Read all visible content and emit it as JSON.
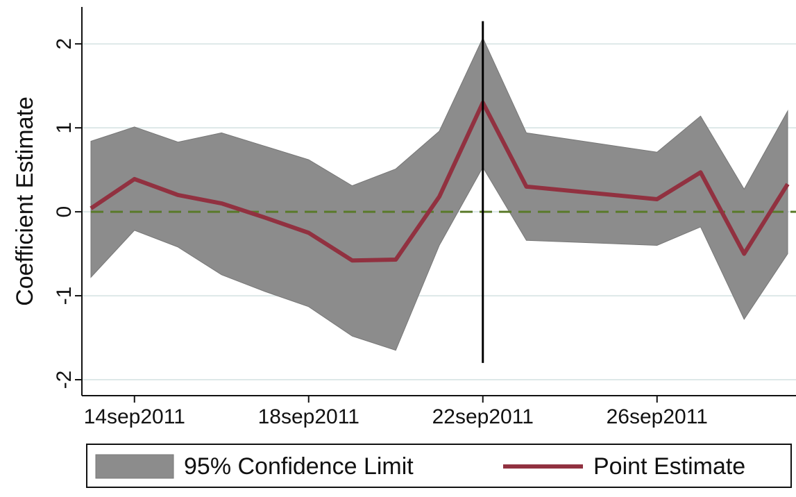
{
  "chart_data": {
    "type": "line",
    "ylabel": "Coefficient Estimate",
    "x": [
      "2011-09-13",
      "2011-09-14",
      "2011-09-15",
      "2011-09-16",
      "2011-09-17",
      "2011-09-18",
      "2011-09-19",
      "2011-09-20",
      "2011-09-21",
      "2011-09-22",
      "2011-09-23",
      "2011-09-26",
      "2011-09-27",
      "2011-09-28",
      "2011-09-29"
    ],
    "band": {
      "name": "95% Confidence Limit",
      "color": "#8c8c8c",
      "upper": [
        0.84,
        1.01,
        0.83,
        0.94,
        0.78,
        0.62,
        0.31,
        0.51,
        0.96,
        2.07,
        0.94,
        0.71,
        1.14,
        0.27,
        1.2
      ],
      "lower": [
        -0.78,
        -0.22,
        -0.42,
        -0.75,
        -0.95,
        -1.13,
        -1.48,
        -1.65,
        -0.4,
        0.53,
        -0.34,
        -0.4,
        -0.18,
        -1.28,
        -0.5
      ]
    },
    "series": [
      {
        "name": "Point Estimate",
        "color": "#913140",
        "values": [
          0.04,
          0.39,
          0.2,
          0.1,
          -0.07,
          -0.25,
          -0.58,
          -0.57,
          0.18,
          1.3,
          0.3,
          0.15,
          0.47,
          -0.5,
          0.33
        ]
      }
    ],
    "xlim": [
      "2011-09-13",
      "2011-09-29"
    ],
    "xticks": [
      {
        "value": "2011-09-14",
        "label": "14sep2011"
      },
      {
        "value": "2011-09-18",
        "label": "18sep2011"
      },
      {
        "value": "2011-09-22",
        "label": "22sep2011"
      },
      {
        "value": "2011-09-26",
        "label": "26sep2011"
      }
    ],
    "ylim": [
      -2.19,
      2.44
    ],
    "yticks": [
      -2,
      -1,
      0,
      1,
      2
    ],
    "grid": true,
    "hline": {
      "y": 0,
      "color": "#5a7a2a"
    },
    "vline": {
      "x": "2011-09-22",
      "y": [
        -1.8,
        2.27
      ],
      "color": "#000000"
    },
    "legend": "bottom"
  }
}
